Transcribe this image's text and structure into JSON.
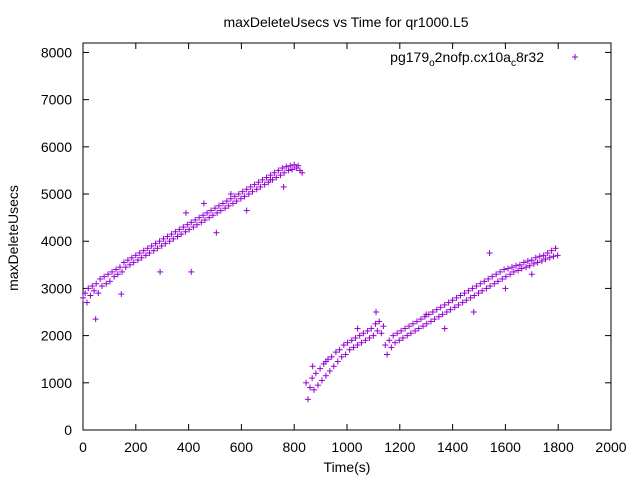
{
  "chart_data": {
    "type": "scatter",
    "title": "maxDeleteUsecs vs Time for qr1000.L5",
    "xlabel": "Time(s)",
    "ylabel": "maxDeleteUsecs",
    "xlim": [
      0,
      2000
    ],
    "ylim": [
      0,
      8200
    ],
    "xticks": [
      0,
      200,
      400,
      600,
      800,
      1000,
      1200,
      1400,
      1600,
      1800,
      2000
    ],
    "yticks": [
      0,
      1000,
      2000,
      3000,
      4000,
      5000,
      6000,
      7000,
      8000
    ],
    "grid": false,
    "legend_position": "top-right",
    "marker": "+",
    "series": [
      {
        "name_parts": [
          "pg179",
          "o",
          "2nofp.cx10a",
          "c",
          "8r32"
        ],
        "color": "#9400d3",
        "points": [
          [
            0,
            2800
          ],
          [
            8,
            2900
          ],
          [
            15,
            2700
          ],
          [
            20,
            3000
          ],
          [
            28,
            2850
          ],
          [
            35,
            3050
          ],
          [
            42,
            2950
          ],
          [
            50,
            3100
          ],
          [
            58,
            2900
          ],
          [
            65,
            3200
          ],
          [
            72,
            3050
          ],
          [
            80,
            3250
          ],
          [
            88,
            3100
          ],
          [
            95,
            3300
          ],
          [
            102,
            3150
          ],
          [
            110,
            3350
          ],
          [
            118,
            3250
          ],
          [
            125,
            3400
          ],
          [
            132,
            3300
          ],
          [
            140,
            3450
          ],
          [
            148,
            3350
          ],
          [
            155,
            3550
          ],
          [
            162,
            3450
          ],
          [
            170,
            3600
          ],
          [
            178,
            3500
          ],
          [
            185,
            3650
          ],
          [
            192,
            3550
          ],
          [
            200,
            3700
          ],
          [
            208,
            3600
          ],
          [
            215,
            3750
          ],
          [
            222,
            3650
          ],
          [
            230,
            3800
          ],
          [
            238,
            3700
          ],
          [
            245,
            3850
          ],
          [
            252,
            3750
          ],
          [
            260,
            3900
          ],
          [
            268,
            3800
          ],
          [
            275,
            3950
          ],
          [
            282,
            3850
          ],
          [
            290,
            4000
          ],
          [
            298,
            3900
          ],
          [
            305,
            4050
          ],
          [
            312,
            3950
          ],
          [
            320,
            4100
          ],
          [
            328,
            4000
          ],
          [
            335,
            4150
          ],
          [
            342,
            4050
          ],
          [
            350,
            4200
          ],
          [
            358,
            4100
          ],
          [
            365,
            4250
          ],
          [
            372,
            4150
          ],
          [
            380,
            4300
          ],
          [
            388,
            4200
          ],
          [
            395,
            4350
          ],
          [
            402,
            4250
          ],
          [
            410,
            4400
          ],
          [
            418,
            4300
          ],
          [
            425,
            4450
          ],
          [
            432,
            4350
          ],
          [
            440,
            4500
          ],
          [
            448,
            4400
          ],
          [
            455,
            4550
          ],
          [
            462,
            4450
          ],
          [
            470,
            4600
          ],
          [
            478,
            4500
          ],
          [
            485,
            4650
          ],
          [
            492,
            4550
          ],
          [
            500,
            4700
          ],
          [
            508,
            4600
          ],
          [
            515,
            4750
          ],
          [
            522,
            4650
          ],
          [
            530,
            4800
          ],
          [
            538,
            4700
          ],
          [
            545,
            4850
          ],
          [
            552,
            4750
          ],
          [
            560,
            4900
          ],
          [
            568,
            4800
          ],
          [
            575,
            4950
          ],
          [
            582,
            4850
          ],
          [
            590,
            5000
          ],
          [
            598,
            4900
          ],
          [
            605,
            5050
          ],
          [
            612,
            4950
          ],
          [
            620,
            5100
          ],
          [
            628,
            5000
          ],
          [
            635,
            5150
          ],
          [
            642,
            5050
          ],
          [
            650,
            5200
          ],
          [
            658,
            5100
          ],
          [
            665,
            5250
          ],
          [
            672,
            5150
          ],
          [
            680,
            5300
          ],
          [
            688,
            5200
          ],
          [
            695,
            5350
          ],
          [
            702,
            5250
          ],
          [
            710,
            5400
          ],
          [
            718,
            5300
          ],
          [
            725,
            5450
          ],
          [
            732,
            5350
          ],
          [
            740,
            5500
          ],
          [
            748,
            5400
          ],
          [
            755,
            5550
          ],
          [
            762,
            5450
          ],
          [
            770,
            5580
          ],
          [
            778,
            5500
          ],
          [
            785,
            5600
          ],
          [
            792,
            5520
          ],
          [
            800,
            5620
          ],
          [
            808,
            5550
          ],
          [
            815,
            5600
          ],
          [
            822,
            5500
          ],
          [
            830,
            5450
          ],
          [
            48,
            2350
          ],
          [
            145,
            2880
          ],
          [
            292,
            3350
          ],
          [
            390,
            4600
          ],
          [
            410,
            3350
          ],
          [
            458,
            4800
          ],
          [
            505,
            4180
          ],
          [
            560,
            5000
          ],
          [
            620,
            4650
          ],
          [
            710,
            5300
          ],
          [
            760,
            5150
          ],
          [
            845,
            1000
          ],
          [
            852,
            650
          ],
          [
            860,
            900
          ],
          [
            868,
            1100
          ],
          [
            875,
            850
          ],
          [
            882,
            1200
          ],
          [
            890,
            950
          ],
          [
            898,
            1300
          ],
          [
            905,
            1050
          ],
          [
            912,
            1400
          ],
          [
            920,
            1150
          ],
          [
            928,
            1500
          ],
          [
            935,
            1250
          ],
          [
            942,
            1550
          ],
          [
            950,
            1350
          ],
          [
            958,
            1650
          ],
          [
            965,
            1450
          ],
          [
            972,
            1700
          ],
          [
            980,
            1550
          ],
          [
            988,
            1800
          ],
          [
            995,
            1600
          ],
          [
            1002,
            1850
          ],
          [
            1010,
            1700
          ],
          [
            1018,
            1900
          ],
          [
            1025,
            1750
          ],
          [
            1032,
            1950
          ],
          [
            1040,
            1800
          ],
          [
            1048,
            2000
          ],
          [
            1055,
            1850
          ],
          [
            1062,
            2050
          ],
          [
            1070,
            1900
          ],
          [
            1078,
            2100
          ],
          [
            1085,
            1950
          ],
          [
            1092,
            2150
          ],
          [
            1100,
            2000
          ],
          [
            1108,
            2250
          ],
          [
            1115,
            2100
          ],
          [
            1122,
            2300
          ],
          [
            1130,
            2050
          ],
          [
            1138,
            2200
          ],
          [
            1145,
            1800
          ],
          [
            1152,
            1600
          ],
          [
            1160,
            1900
          ],
          [
            1168,
            1750
          ],
          [
            1175,
            2000
          ],
          [
            1182,
            1850
          ],
          [
            1190,
            2050
          ],
          [
            1198,
            1900
          ],
          [
            1205,
            2100
          ],
          [
            1212,
            1950
          ],
          [
            1220,
            2150
          ],
          [
            1228,
            2000
          ],
          [
            1235,
            2200
          ],
          [
            1242,
            2050
          ],
          [
            1250,
            2250
          ],
          [
            1258,
            2100
          ],
          [
            1265,
            2300
          ],
          [
            1272,
            2150
          ],
          [
            1280,
            2350
          ],
          [
            1288,
            2200
          ],
          [
            1295,
            2400
          ],
          [
            1302,
            2250
          ],
          [
            1310,
            2450
          ],
          [
            1318,
            2300
          ],
          [
            1325,
            2500
          ],
          [
            1332,
            2350
          ],
          [
            1340,
            2550
          ],
          [
            1348,
            2400
          ],
          [
            1355,
            2600
          ],
          [
            1362,
            2450
          ],
          [
            1370,
            2650
          ],
          [
            1378,
            2500
          ],
          [
            1385,
            2700
          ],
          [
            1392,
            2550
          ],
          [
            1400,
            2750
          ],
          [
            1408,
            2600
          ],
          [
            1415,
            2800
          ],
          [
            1422,
            2650
          ],
          [
            1430,
            2850
          ],
          [
            1438,
            2700
          ],
          [
            1445,
            2900
          ],
          [
            1452,
            2750
          ],
          [
            1460,
            2950
          ],
          [
            1468,
            2800
          ],
          [
            1475,
            3000
          ],
          [
            1482,
            2850
          ],
          [
            1490,
            3050
          ],
          [
            1498,
            2900
          ],
          [
            1505,
            3100
          ],
          [
            1512,
            2950
          ],
          [
            1520,
            3150
          ],
          [
            1528,
            3000
          ],
          [
            1535,
            3200
          ],
          [
            1542,
            3050
          ],
          [
            1550,
            3250
          ],
          [
            1558,
            3100
          ],
          [
            1565,
            3300
          ],
          [
            1572,
            3150
          ],
          [
            1580,
            3350
          ],
          [
            1588,
            3200
          ],
          [
            1595,
            3400
          ],
          [
            1602,
            3250
          ],
          [
            1610,
            3420
          ],
          [
            1618,
            3300
          ],
          [
            1625,
            3450
          ],
          [
            1632,
            3350
          ],
          [
            1640,
            3480
          ],
          [
            1648,
            3380
          ],
          [
            1655,
            3500
          ],
          [
            1662,
            3420
          ],
          [
            1670,
            3550
          ],
          [
            1678,
            3450
          ],
          [
            1685,
            3580
          ],
          [
            1692,
            3480
          ],
          [
            1700,
            3600
          ],
          [
            1708,
            3520
          ],
          [
            1715,
            3650
          ],
          [
            1722,
            3550
          ],
          [
            1730,
            3680
          ],
          [
            1738,
            3580
          ],
          [
            1745,
            3700
          ],
          [
            1752,
            3620
          ],
          [
            1760,
            3750
          ],
          [
            1768,
            3650
          ],
          [
            1775,
            3800
          ],
          [
            1782,
            3680
          ],
          [
            1790,
            3850
          ],
          [
            1798,
            3700
          ],
          [
            870,
            1350
          ],
          [
            920,
            1450
          ],
          [
            1040,
            2150
          ],
          [
            1110,
            2500
          ],
          [
            1300,
            2450
          ],
          [
            1540,
            3750
          ],
          [
            1480,
            2500
          ],
          [
            1700,
            3300
          ],
          [
            1370,
            2150
          ],
          [
            1600,
            3000
          ]
        ]
      }
    ]
  }
}
